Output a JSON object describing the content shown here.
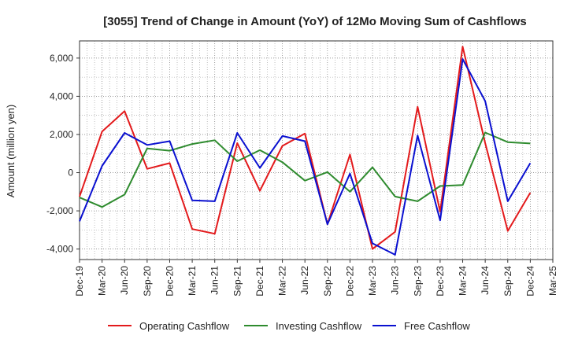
{
  "chart_data": {
    "type": "line",
    "title": "[3055]  Trend of Change in Amount (YoY) of 12Mo Moving Sum of Cashflows",
    "xlabel": "",
    "ylabel": "Amount (million yen)",
    "categories": [
      "Dec-19",
      "Mar-20",
      "Jun-20",
      "Sep-20",
      "Dec-20",
      "Mar-21",
      "Jun-21",
      "Sep-21",
      "Dec-21",
      "Mar-22",
      "Jun-22",
      "Sep-22",
      "Dec-22",
      "Mar-23",
      "Jun-23",
      "Sep-23",
      "Dec-23",
      "Mar-24",
      "Jun-24",
      "Sep-24",
      "Dec-24",
      "Mar-25"
    ],
    "yticks": [
      -4000,
      -2000,
      0,
      2000,
      4000,
      6000
    ],
    "ytick_labels": [
      "-4,000",
      "-2,000",
      "0",
      "2,000",
      "4,000",
      "6,000"
    ],
    "ylim": [
      -4550,
      6900
    ],
    "grid": true,
    "legend_position": "bottom",
    "series": [
      {
        "name": "Operating Cashflow",
        "color": "#e31a1c",
        "values": [
          -1250,
          2150,
          3220,
          200,
          500,
          -2950,
          -3200,
          1550,
          -950,
          1400,
          2050,
          -2700,
          950,
          -4000,
          -3100,
          3450,
          -2050,
          6600,
          1550,
          -3050,
          -1050,
          null
        ]
      },
      {
        "name": "Investing Cashflow",
        "color": "#2e8b2e",
        "values": [
          -1300,
          -1800,
          -1150,
          1270,
          1150,
          1500,
          1700,
          600,
          1180,
          550,
          -420,
          30,
          -1000,
          280,
          -1250,
          -1500,
          -700,
          -650,
          2100,
          1600,
          1530,
          null
        ]
      },
      {
        "name": "Free Cashflow",
        "color": "#0a10d0",
        "values": [
          -2550,
          350,
          2080,
          1450,
          1650,
          -1450,
          -1500,
          2080,
          250,
          1920,
          1650,
          -2700,
          -50,
          -3700,
          -4300,
          1950,
          -2500,
          5950,
          3750,
          -1500,
          500,
          null
        ]
      }
    ]
  }
}
